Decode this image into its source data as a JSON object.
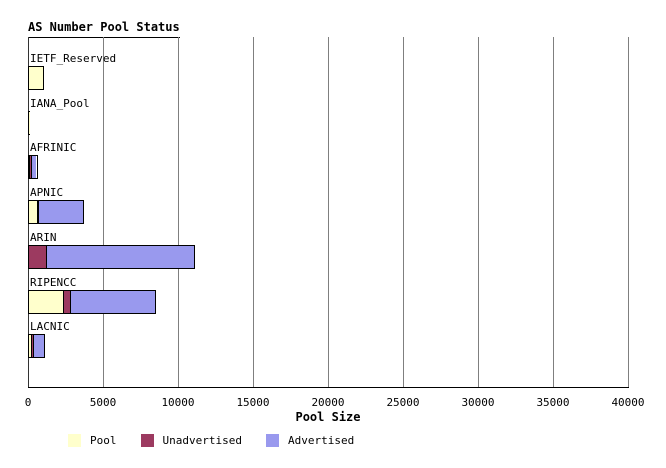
{
  "title": "AS Number Pool Status",
  "xlabel": "Pool Size",
  "chart_data": {
    "type": "bar",
    "orientation": "horizontal",
    "stacked": true,
    "title": "AS Number Pool Status",
    "xlabel": "Pool Size",
    "ylabel": "",
    "xlim": [
      0,
      40000
    ],
    "xticks": [
      0,
      5000,
      10000,
      15000,
      20000,
      25000,
      30000,
      35000,
      40000
    ],
    "grid": "vertical-gray",
    "legend_position": "bottom",
    "categories": [
      "IETF_Reserved",
      "IANA_Pool",
      "AFRINIC",
      "APNIC",
      "ARIN",
      "RIPENCC",
      "LACNIC"
    ],
    "series": [
      {
        "name": "Pool",
        "color": "#FFFFCC",
        "values": [
          950,
          30,
          70,
          600,
          0,
          2330,
          230
        ]
      },
      {
        "name": "Unadvertised",
        "color": "#9C3A60",
        "values": [
          0,
          0,
          150,
          50,
          1200,
          470,
          130
        ]
      },
      {
        "name": "Advertised",
        "color": "#9999EE",
        "values": [
          0,
          0,
          280,
          2950,
          9800,
          5600,
          640
        ]
      }
    ],
    "colors": {
      "grid": "#7f7f7f",
      "axis": "#000000",
      "bar_border": "#000000",
      "background": "#ffffff"
    }
  }
}
